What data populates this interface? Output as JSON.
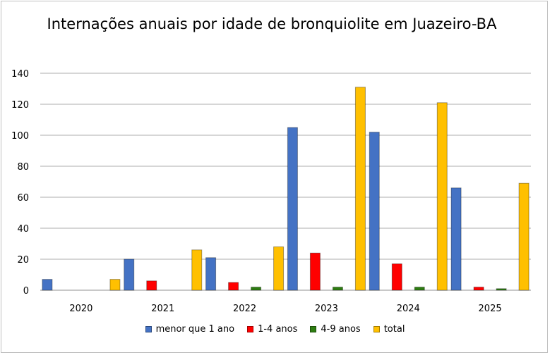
{
  "chart_data": {
    "type": "bar",
    "title": "Internações anuais por idade de bronquiolite em Juazeiro-BA",
    "categories": [
      "2020",
      "2021",
      "2022",
      "2023",
      "2024",
      "2025"
    ],
    "series": [
      {
        "name": "menor que 1 ano",
        "color": "#4472C4",
        "values": [
          7,
          20,
          21,
          105,
          102,
          66
        ]
      },
      {
        "name": "1-4 anos",
        "color": "#FF0000",
        "values": [
          0,
          6,
          5,
          24,
          17,
          2
        ]
      },
      {
        "name": "4-9 anos",
        "color": "#2E7D12",
        "values": [
          0,
          0,
          2,
          2,
          2,
          1
        ]
      },
      {
        "name": "total",
        "color": "#FFC000",
        "values": [
          7,
          26,
          28,
          131,
          121,
          69
        ]
      }
    ],
    "ylim": [
      0,
      140
    ],
    "yticks": [
      0,
      20,
      40,
      60,
      80,
      100,
      120,
      140
    ],
    "grid": true,
    "legend": "bottom"
  }
}
